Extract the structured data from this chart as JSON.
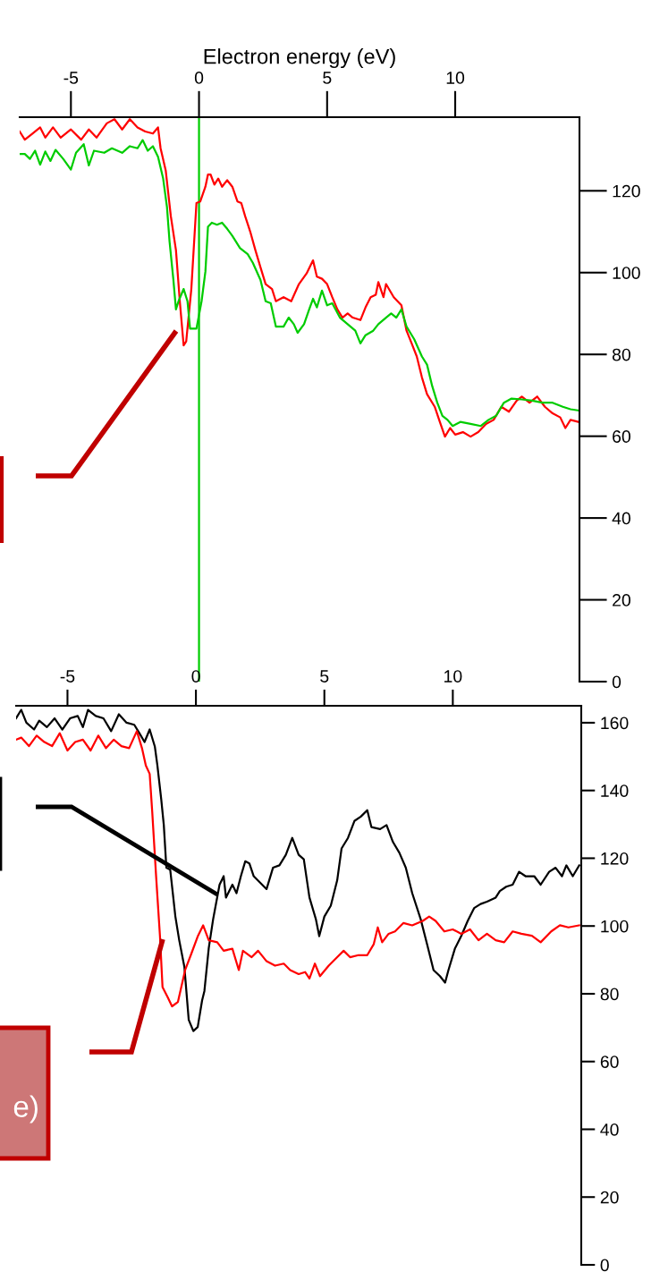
{
  "chart_data": [
    {
      "type": "line",
      "xlabel": "Electron energy (eV)",
      "xlim": [
        -7,
        14.85
      ],
      "ylim": [
        0,
        138
      ],
      "xticks": [
        -5,
        0,
        5,
        10
      ],
      "yticks": [
        0,
        20,
        40,
        60,
        80,
        100,
        120
      ],
      "grid": false,
      "ref_lines": [
        {
          "axis": "x",
          "value": 0,
          "color": "#00cc00",
          "line_style": "solid"
        }
      ],
      "series": [
        {
          "color": "#ff0000",
          "x": [
            -7,
            -6.8,
            -6.5,
            -6.2,
            -6,
            -5.7,
            -5.4,
            -5,
            -4.6,
            -4.3,
            -4,
            -3.6,
            -3.3,
            -3,
            -2.7,
            -2.4,
            -2.1,
            -1.8,
            -1.6,
            -1.5,
            -1.3,
            -1.1,
            -0.9,
            -0.75,
            -0.6,
            -0.5,
            -0.3,
            -0.1,
            0.05,
            0.25,
            0.35,
            0.45,
            0.6,
            0.75,
            0.9,
            1.1,
            1.3,
            1.5,
            1.65,
            1.8,
            2.0,
            2.2,
            2.4,
            2.6,
            2.85,
            3.0,
            3.3,
            3.6,
            3.9,
            4.2,
            4.45,
            4.6,
            4.8,
            5.0,
            5.2,
            5.4,
            5.6,
            5.8,
            6.0,
            6.3,
            6.5,
            6.7,
            6.9,
            7.0,
            7.2,
            7.3,
            7.6,
            7.9,
            8.1,
            8.3,
            8.5,
            8.7,
            8.9,
            9.2,
            9.4,
            9.6,
            9.8,
            10.0,
            10.3,
            10.6,
            10.9,
            11.2,
            11.5,
            11.8,
            12.1,
            12.4,
            12.6,
            12.9,
            13.2,
            13.5,
            13.8,
            14.1,
            14.3,
            14.5,
            14.8
          ],
          "values": [
            134.5,
            132.5,
            134,
            135.5,
            133,
            135.5,
            133,
            135,
            132.5,
            135,
            133,
            136.5,
            137.5,
            135,
            137.5,
            135.5,
            134.5,
            134,
            135.5,
            130.4,
            125,
            113.8,
            105.5,
            93,
            82.2,
            83.2,
            96,
            117,
            117.4,
            121,
            124,
            124,
            121.5,
            123,
            121,
            122.6,
            121,
            117.4,
            117,
            113.8,
            110,
            105.5,
            101.3,
            97.2,
            96,
            93,
            94,
            93,
            97.2,
            99.8,
            103,
            99,
            98.5,
            97.2,
            94,
            91,
            89,
            90,
            89,
            88.4,
            91.5,
            94,
            94.6,
            97.7,
            94,
            97.2,
            94,
            92,
            85.8,
            82.7,
            79.5,
            74.4,
            70.3,
            67.2,
            63.5,
            59.9,
            62,
            60.4,
            61,
            59.9,
            61,
            63,
            64,
            67.2,
            66,
            68.7,
            69.7,
            68.2,
            69.7,
            67.2,
            65.6,
            64.6,
            62,
            64,
            63.5
          ]
        },
        {
          "color": "#00cc00",
          "x": [
            -7,
            -6.8,
            -6.6,
            -6.4,
            -6.2,
            -6,
            -5.8,
            -5.6,
            -5.3,
            -5.0,
            -4.8,
            -4.5,
            -4.3,
            -4.1,
            -3.7,
            -3.4,
            -3.0,
            -2.7,
            -2.4,
            -2.2,
            -2.0,
            -1.8,
            -1.6,
            -1.4,
            -1.25,
            -1.15,
            -1.0,
            -0.9,
            -0.8,
            -0.6,
            -0.45,
            -0.35,
            -0.1,
            0.1,
            0.25,
            0.35,
            0.5,
            0.7,
            0.9,
            1.1,
            1.3,
            1.6,
            1.9,
            2.1,
            2.4,
            2.6,
            2.8,
            3.0,
            3.3,
            3.5,
            3.7,
            3.85,
            4.1,
            4.3,
            4.45,
            4.6,
            4.8,
            5.0,
            5.2,
            5.5,
            5.8,
            6.1,
            6.3,
            6.5,
            6.8,
            7.0,
            7.3,
            7.5,
            7.7,
            7.9,
            8.1,
            8.4,
            8.7,
            8.9,
            9.1,
            9.3,
            9.5,
            9.7,
            9.9,
            10.2,
            10.6,
            11.0,
            11.3,
            11.6,
            11.9,
            12.2,
            12.6,
            13.0,
            13.4,
            13.8,
            14.2,
            14.5,
            14.8
          ],
          "values": [
            129,
            129,
            127.8,
            129.8,
            126.4,
            129.6,
            127.3,
            130,
            127.8,
            125.2,
            129.3,
            131.4,
            126.2,
            129.8,
            129.3,
            130.4,
            129.3,
            130.9,
            130.4,
            132.4,
            129.8,
            130.9,
            128.3,
            123,
            116,
            107.6,
            98.2,
            91,
            93,
            96,
            93,
            86.3,
            86.3,
            93,
            100.3,
            111.2,
            112.2,
            111.7,
            112.2,
            110.7,
            109,
            106,
            104.5,
            102.4,
            98.2,
            93,
            92.5,
            86.8,
            86.8,
            89,
            87.4,
            85.3,
            87.4,
            91,
            93.6,
            91.5,
            95.6,
            92,
            92.5,
            89,
            87.4,
            85.8,
            82.7,
            84.7,
            85.8,
            87.4,
            89,
            90,
            89,
            91,
            86.8,
            83.7,
            79.5,
            77.5,
            72.3,
            68.2,
            65,
            64,
            62.5,
            63.5,
            63,
            62.5,
            64,
            65,
            68.2,
            69.2,
            69,
            68.7,
            68.2,
            68.2,
            67.2,
            66.6,
            66.3
          ]
        }
      ]
    },
    {
      "type": "line",
      "xlim": [
        -7,
        15
      ],
      "ylim": [
        0,
        165
      ],
      "xticks": [
        -5,
        0,
        5,
        10
      ],
      "yticks": [
        0,
        20,
        40,
        60,
        80,
        100,
        120,
        140,
        160
      ],
      "grid": false,
      "annotations": [
        "e)"
      ],
      "series": [
        {
          "color": "#000000",
          "x": [
            -7,
            -6.8,
            -6.6,
            -6.3,
            -6.1,
            -5.8,
            -5.5,
            -5.2,
            -4.9,
            -4.6,
            -4.4,
            -4.2,
            -3.9,
            -3.6,
            -3.3,
            -3.0,
            -2.7,
            -2.4,
            -2.2,
            -2.0,
            -1.8,
            -1.6,
            -1.5,
            -1.35,
            -1.25,
            -1.15,
            -1.0,
            -0.9,
            -0.8,
            -0.65,
            -0.45,
            -0.28,
            -0.1,
            0.07,
            0.24,
            0.33,
            0.5,
            0.67,
            0.92,
            1.08,
            1.17,
            1.42,
            1.58,
            1.75,
            1.92,
            2.08,
            2.25,
            2.5,
            2.75,
            3.0,
            3.25,
            3.5,
            3.75,
            4.0,
            4.2,
            4.42,
            4.67,
            4.8,
            5.0,
            5.25,
            5.5,
            5.67,
            5.92,
            6.17,
            6.42,
            6.67,
            6.83,
            7.17,
            7.42,
            7.67,
            7.92,
            8.17,
            8.42,
            8.75,
            9.0,
            9.25,
            9.5,
            9.7,
            9.83,
            10.08,
            10.33,
            10.58,
            10.83,
            11.08,
            11.33,
            11.67,
            11.83,
            12.08,
            12.33,
            12.58,
            12.83,
            13.17,
            13.42,
            13.75,
            14.0,
            14.25,
            14.42,
            14.67,
            14.92
          ],
          "values": [
            161.3,
            163.8,
            160,
            158,
            160.6,
            158.7,
            161.3,
            158,
            161.3,
            162,
            158.7,
            163.8,
            162,
            161.3,
            157.5,
            162.5,
            160,
            159.4,
            156.9,
            154.3,
            158,
            153,
            147.4,
            137.4,
            129.8,
            117.2,
            116.6,
            109.7,
            102.8,
            95.8,
            88,
            72.3,
            69,
            70.2,
            78,
            80.8,
            93.5,
            102,
            112.2,
            114.7,
            108.4,
            112.2,
            109.7,
            114.7,
            119.1,
            118.5,
            114.7,
            112.8,
            110.9,
            117.2,
            117.9,
            121,
            126,
            121,
            119.7,
            108.4,
            102,
            97,
            102.8,
            106,
            113.5,
            122.9,
            126,
            131,
            132.3,
            134.2,
            129.2,
            128.6,
            129.8,
            124.8,
            121.6,
            117.2,
            109.7,
            102,
            94.6,
            87,
            85.2,
            83.3,
            87,
            93.3,
            97.1,
            101.5,
            105.3,
            106.5,
            107.2,
            108.4,
            110.3,
            111.6,
            112.2,
            116,
            114.7,
            114.7,
            112.2,
            116,
            117.2,
            114.7,
            117.9,
            114.7,
            117.9
          ]
        },
        {
          "color": "#ff0000",
          "x": [
            -7,
            -6.8,
            -6.5,
            -6.2,
            -5.9,
            -5.6,
            -5.3,
            -5.0,
            -4.7,
            -4.4,
            -4.1,
            -3.8,
            -3.5,
            -3.2,
            -2.9,
            -2.6,
            -2.3,
            -2.1,
            -1.95,
            -1.8,
            -1.7,
            -1.55,
            -1.4,
            -1.3,
            -1.1,
            -0.93,
            -0.7,
            -0.42,
            -0.17,
            0.08,
            0.28,
            0.5,
            0.83,
            1.08,
            1.42,
            1.67,
            1.83,
            2.17,
            2.42,
            2.75,
            3.08,
            3.42,
            3.67,
            4.0,
            4.25,
            4.42,
            4.63,
            4.83,
            5.17,
            5.5,
            5.75,
            6.0,
            6.33,
            6.67,
            6.92,
            7.08,
            7.25,
            7.5,
            7.75,
            8.08,
            8.42,
            8.83,
            9.08,
            9.33,
            9.67,
            10.0,
            10.33,
            10.67,
            11.0,
            11.33,
            11.67,
            12.0,
            12.33,
            12.67,
            13.08,
            13.42,
            13.83,
            14.17,
            14.5,
            14.92
          ],
          "values": [
            155,
            155.6,
            153.1,
            156.2,
            154.3,
            153.1,
            156.9,
            151.8,
            154.3,
            155,
            151.8,
            156.2,
            152.5,
            155,
            153.1,
            152.5,
            157.5,
            152.5,
            147.4,
            144.9,
            133.6,
            114.7,
            97.1,
            82,
            79,
            76.3,
            77.6,
            87,
            92,
            97.1,
            100.2,
            95.8,
            95.2,
            92.7,
            93.3,
            87,
            92.7,
            90.8,
            92.7,
            89.6,
            88.3,
            88.9,
            87,
            85.8,
            86.4,
            84.5,
            88.9,
            85.2,
            88.3,
            90.8,
            92.7,
            90.8,
            91.4,
            91.4,
            94.6,
            99.6,
            95.2,
            97.7,
            98.4,
            100.9,
            100.2,
            101.5,
            102.8,
            101.5,
            98.4,
            99,
            97.7,
            99,
            95.8,
            97.7,
            95.8,
            95.2,
            98.4,
            97.7,
            97.1,
            95.2,
            98.4,
            100.2,
            99.6,
            100.2
          ]
        }
      ]
    }
  ]
}
